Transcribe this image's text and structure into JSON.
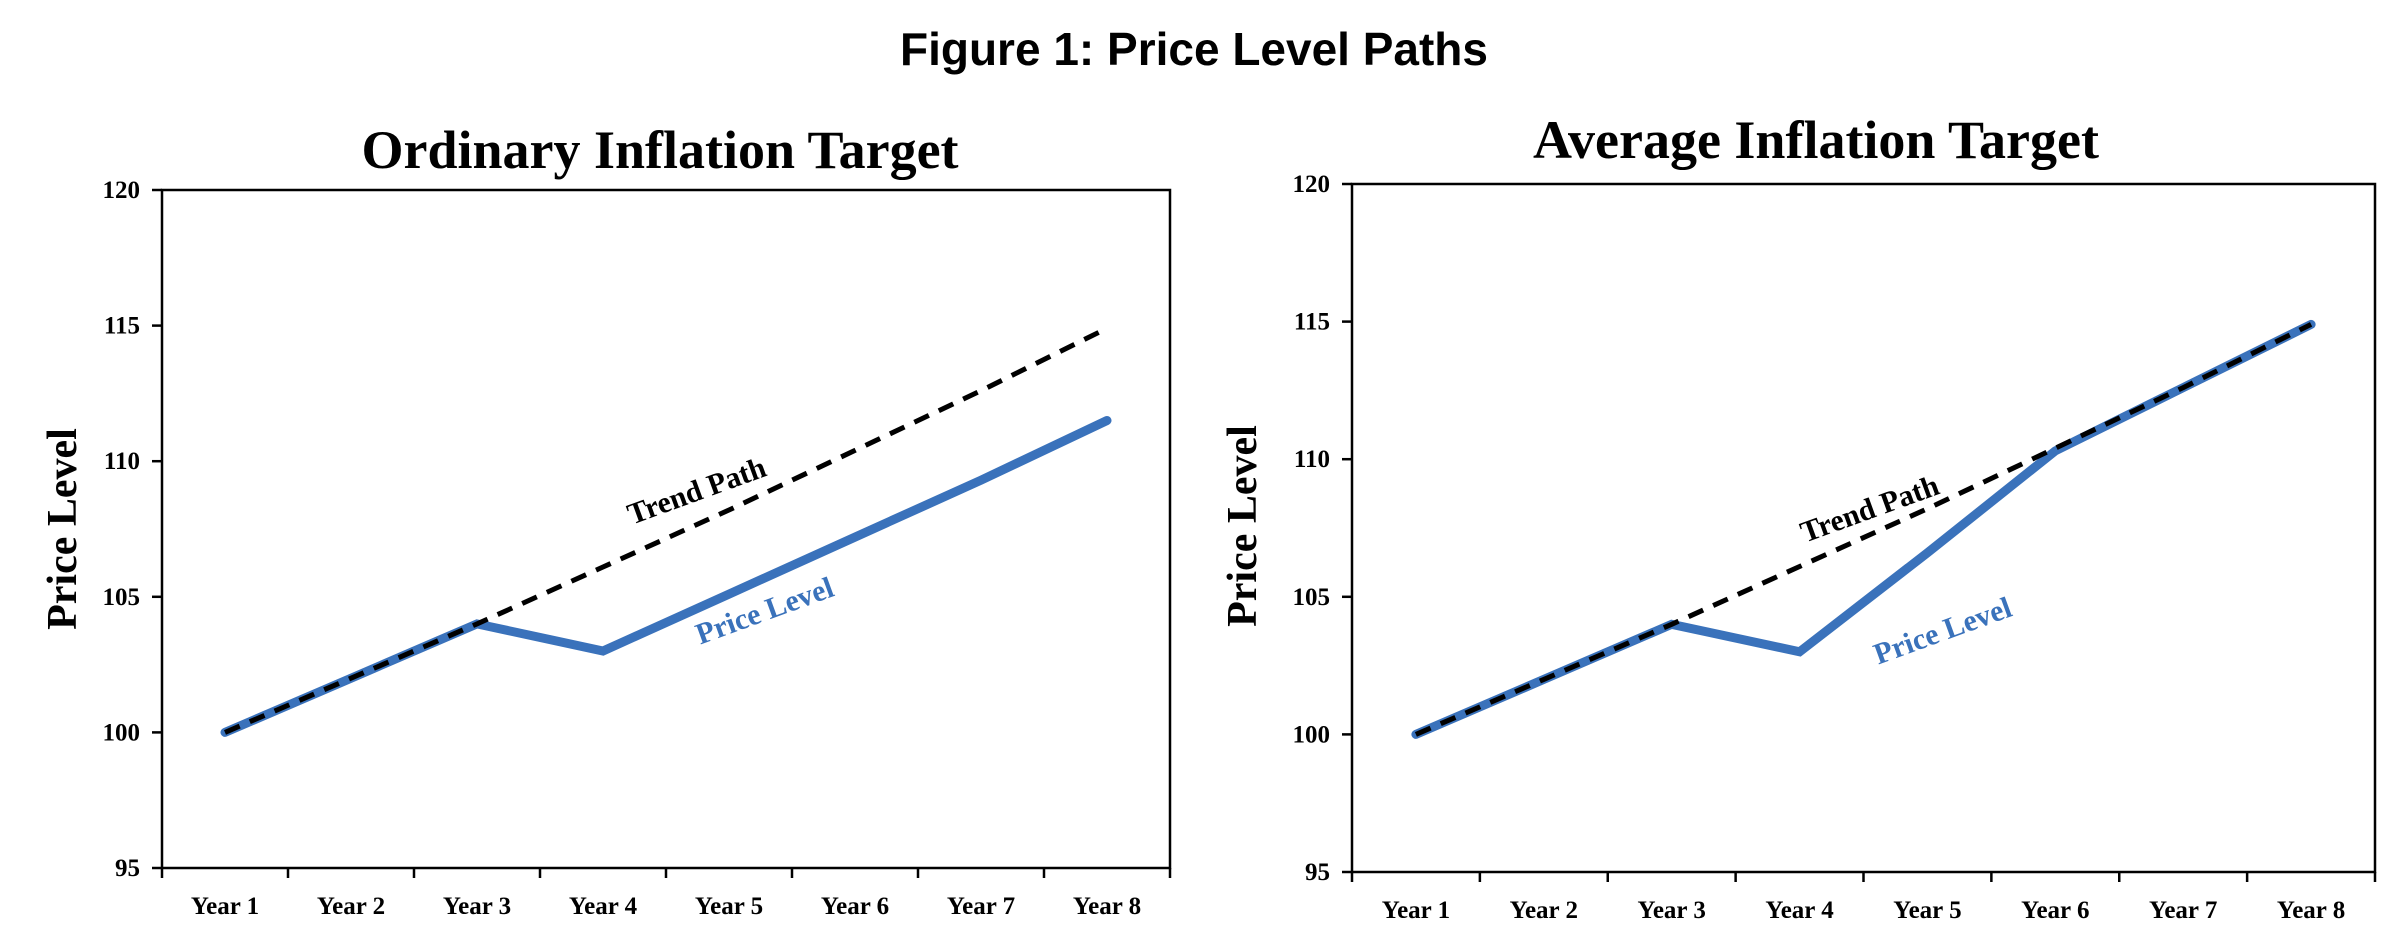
{
  "figure_title": "Figure 1: Price Level Paths",
  "colors": {
    "trend": "#000000",
    "price": "#3a72bb",
    "axis": "#000000"
  },
  "chart_data": [
    {
      "type": "line",
      "title": "Ordinary Inflation Target",
      "xlabel": "",
      "ylabel": "Price Level",
      "categories": [
        "Year 1",
        "Year 2",
        "Year 3",
        "Year 4",
        "Year 5",
        "Year 6",
        "Year 7",
        "Year 8"
      ],
      "ylim": [
        95,
        120
      ],
      "yticks": [
        "95",
        "100",
        "105",
        "110",
        "115",
        "120"
      ],
      "grid": false,
      "series": [
        {
          "name": "Trend Path",
          "values": [
            100,
            102,
            104,
            106.1,
            108.2,
            110.4,
            112.6,
            114.9
          ]
        },
        {
          "name": "Price Level",
          "values": [
            100,
            102,
            104,
            103,
            105.1,
            107.2,
            109.3,
            111.5
          ]
        }
      ]
    },
    {
      "type": "line",
      "title": "Average Inflation Target",
      "xlabel": "",
      "ylabel": "Price Level",
      "categories": [
        "Year 1",
        "Year 2",
        "Year 3",
        "Year 4",
        "Year 5",
        "Year 6",
        "Year 7",
        "Year 8"
      ],
      "ylim": [
        95,
        120
      ],
      "yticks": [
        "95",
        "100",
        "105",
        "110",
        "115",
        "120"
      ],
      "grid": false,
      "series": [
        {
          "name": "Trend Path",
          "values": [
            100,
            102,
            104,
            106.1,
            108.2,
            110.4,
            112.6,
            114.9
          ]
        },
        {
          "name": "Price Level",
          "values": [
            100,
            102,
            104,
            103,
            106.6,
            110.3,
            112.6,
            114.9
          ]
        }
      ]
    }
  ]
}
